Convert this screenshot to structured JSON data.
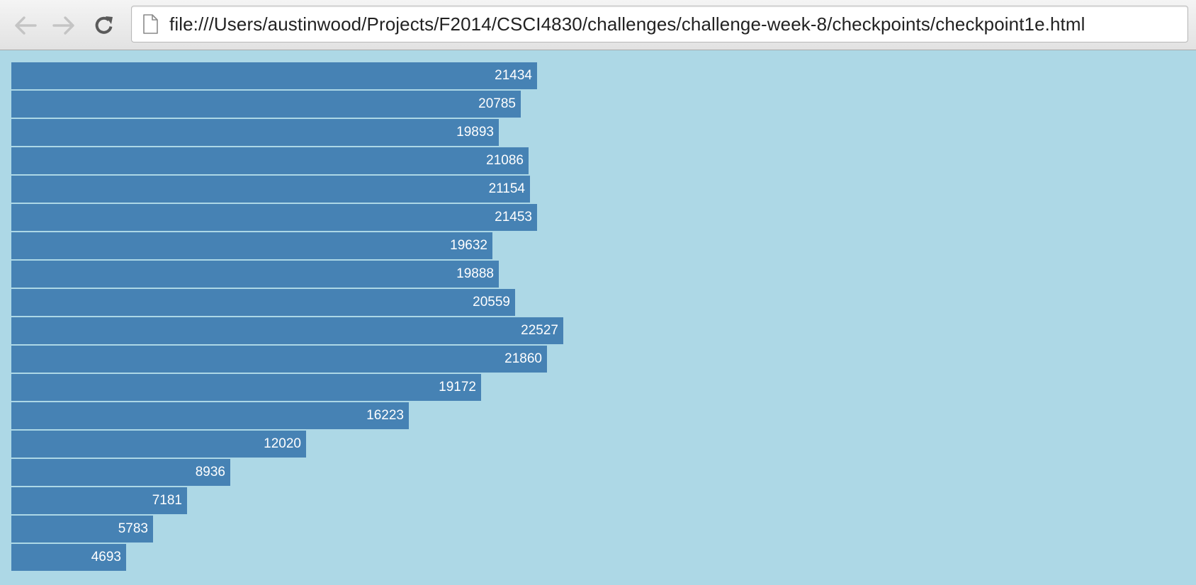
{
  "browser": {
    "url": "file:///Users/austinwood/Projects/F2014/CSCI4830/challenges/challenge-week-8/checkpoints/checkpoint1e.html",
    "back_icon": "arrow-left-icon",
    "forward_icon": "arrow-right-icon",
    "reload_icon": "reload-icon",
    "page_icon": "document-icon"
  },
  "colors": {
    "page_background": "#ADD8E6",
    "bar_fill": "#4682B4",
    "label_text": "#FFFFFF"
  },
  "chart_data": {
    "type": "bar",
    "orientation": "horizontal",
    "values": [
      21434,
      20785,
      19893,
      21086,
      21154,
      21453,
      19632,
      19888,
      20559,
      22527,
      21860,
      19172,
      16223,
      12020,
      8936,
      7181,
      5783,
      4693
    ],
    "grid": false,
    "legend": "none"
  }
}
